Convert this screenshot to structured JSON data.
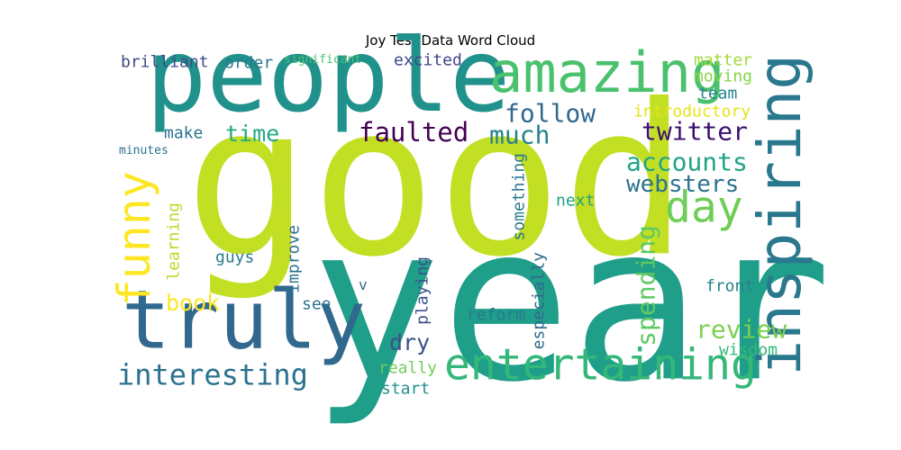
{
  "chart_data": {
    "type": "wordcloud",
    "title": "Joy Test Data Word Cloud",
    "words": [
      {
        "text": "good",
        "weight": 100,
        "color": "#c2df23"
      },
      {
        "text": "year",
        "weight": 88,
        "color": "#1f9e89"
      },
      {
        "text": "people",
        "weight": 50,
        "color": "#21918c"
      },
      {
        "text": "truly",
        "weight": 38,
        "color": "#31688e"
      },
      {
        "text": "inspiring",
        "weight": 32,
        "color": "#2a788e"
      },
      {
        "text": "amazing",
        "weight": 32,
        "color": "#4ac16d"
      },
      {
        "text": "entertaining",
        "weight": 26,
        "color": "#35b779"
      },
      {
        "text": "funny",
        "weight": 26,
        "color": "#fde725"
      },
      {
        "text": "day",
        "weight": 24,
        "color": "#6ece58"
      },
      {
        "text": "interesting",
        "weight": 17,
        "color": "#2c728e"
      },
      {
        "text": "faulted",
        "weight": 16,
        "color": "#440154"
      },
      {
        "text": "twitter",
        "weight": 15,
        "color": "#3b0f70"
      },
      {
        "text": "follow",
        "weight": 15,
        "color": "#31688e"
      },
      {
        "text": "much",
        "weight": 15,
        "color": "#26828e"
      },
      {
        "text": "accounts",
        "weight": 14,
        "color": "#20a486"
      },
      {
        "text": "spending",
        "weight": 14,
        "color": "#5ec962"
      },
      {
        "text": "review",
        "weight": 14,
        "color": "#7ad151"
      },
      {
        "text": "websters",
        "weight": 13,
        "color": "#2c728e"
      },
      {
        "text": "time",
        "weight": 13,
        "color": "#22a884"
      },
      {
        "text": "book",
        "weight": 13,
        "color": "#fde725"
      },
      {
        "text": "dry",
        "weight": 13,
        "color": "#3b528b"
      },
      {
        "text": "brilliant",
        "weight": 10,
        "color": "#3e4a89"
      },
      {
        "text": "excited",
        "weight": 10,
        "color": "#414487"
      },
      {
        "text": "order",
        "weight": 10,
        "color": "#2a788e"
      },
      {
        "text": "introductory",
        "weight": 10,
        "color": "#e5e419"
      },
      {
        "text": "matter",
        "weight": 10,
        "color": "#a0da39"
      },
      {
        "text": "moving",
        "weight": 10,
        "color": "#86d549"
      },
      {
        "text": "team",
        "weight": 10,
        "color": "#26828e"
      },
      {
        "text": "make",
        "weight": 10,
        "color": "#2c728e"
      },
      {
        "text": "guys",
        "weight": 10,
        "color": "#2a788e"
      },
      {
        "text": "learning",
        "weight": 10,
        "color": "#b5de2b"
      },
      {
        "text": "improve",
        "weight": 10,
        "color": "#2c728e"
      },
      {
        "text": "see",
        "weight": 10,
        "color": "#2c728e"
      },
      {
        "text": "something",
        "weight": 10,
        "color": "#2a788e"
      },
      {
        "text": "next",
        "weight": 10,
        "color": "#1fa187"
      },
      {
        "text": "front",
        "weight": 10,
        "color": "#26828e"
      },
      {
        "text": "wisdom",
        "weight": 10,
        "color": "#35b779"
      },
      {
        "text": "playing",
        "weight": 10,
        "color": "#3b528b"
      },
      {
        "text": "reform",
        "weight": 10,
        "color": "#2a788e"
      },
      {
        "text": "especially",
        "weight": 10,
        "color": "#31688e"
      },
      {
        "text": "really",
        "weight": 10,
        "color": "#6ece58"
      },
      {
        "text": "start",
        "weight": 10,
        "color": "#21918c"
      },
      {
        "text": "v",
        "weight": 8,
        "color": "#31688e"
      },
      {
        "text": "significant",
        "weight": 7,
        "color": "#4ac16d"
      },
      {
        "text": "minutes",
        "weight": 7,
        "color": "#2c728e"
      }
    ]
  }
}
